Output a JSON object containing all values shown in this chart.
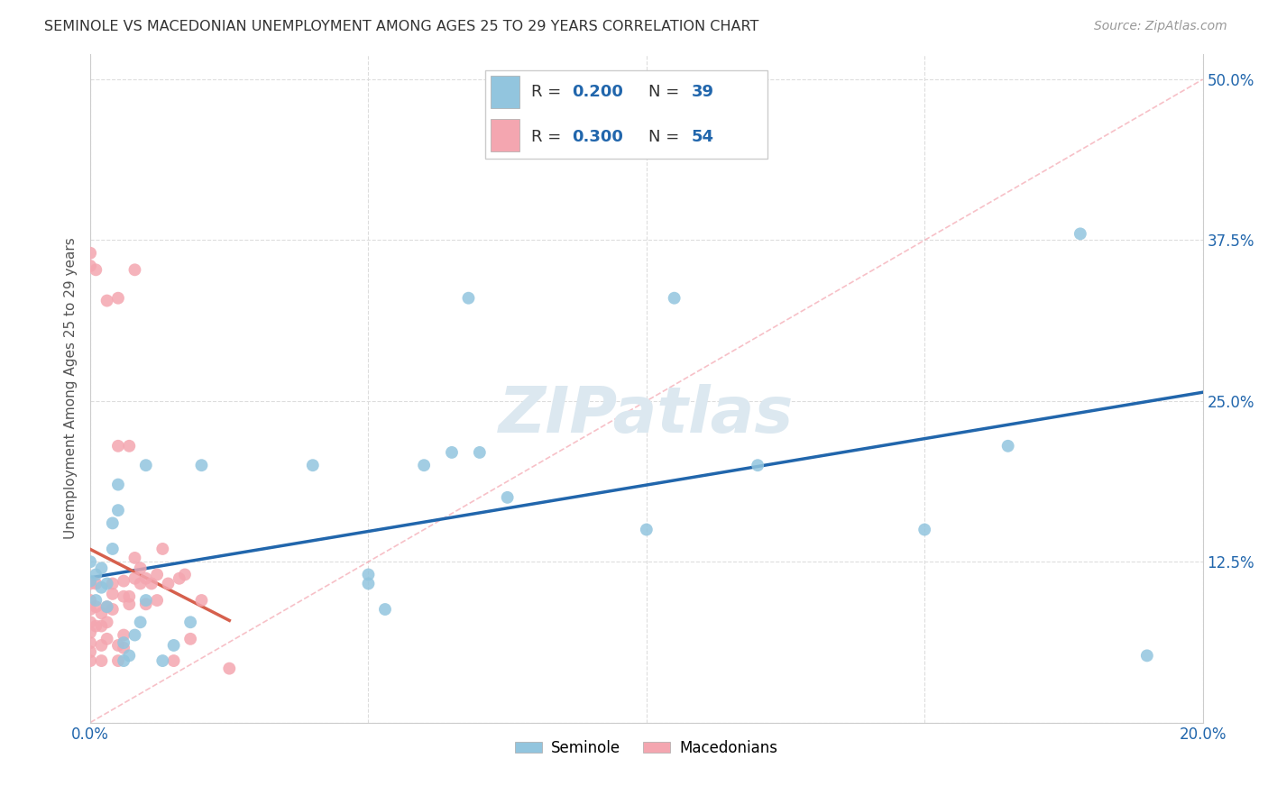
{
  "title": "SEMINOLE VS MACEDONIAN UNEMPLOYMENT AMONG AGES 25 TO 29 YEARS CORRELATION CHART",
  "source": "Source: ZipAtlas.com",
  "ylabel": "Unemployment Among Ages 25 to 29 years",
  "xlim": [
    0.0,
    0.2
  ],
  "ylim": [
    0.0,
    0.52
  ],
  "xticks": [
    0.0,
    0.05,
    0.1,
    0.15,
    0.2
  ],
  "xticklabels": [
    "0.0%",
    "",
    "",
    "",
    "20.0%"
  ],
  "yticks": [
    0.0,
    0.125,
    0.25,
    0.375,
    0.5
  ],
  "yticklabels": [
    "",
    "12.5%",
    "25.0%",
    "37.5%",
    "50.0%"
  ],
  "seminole_R": 0.2,
  "seminole_N": 39,
  "macedonian_R": 0.3,
  "macedonian_N": 54,
  "seminole_color": "#92c5de",
  "macedonian_color": "#f4a6b0",
  "seminole_line_color": "#2166ac",
  "macedonian_line_color": "#d6604d",
  "diagonal_color": "#cccccc",
  "background_color": "#ffffff",
  "grid_color": "#dddddd",
  "sem_x": [
    0.0,
    0.0,
    0.001,
    0.001,
    0.002,
    0.002,
    0.003,
    0.003,
    0.004,
    0.004,
    0.005,
    0.005,
    0.006,
    0.006,
    0.007,
    0.008,
    0.009,
    0.01,
    0.01,
    0.013,
    0.015,
    0.018,
    0.02,
    0.04,
    0.05,
    0.053,
    0.06,
    0.068,
    0.1,
    0.105,
    0.12,
    0.15,
    0.165,
    0.178,
    0.19,
    0.05,
    0.065,
    0.07,
    0.075
  ],
  "sem_y": [
    0.11,
    0.125,
    0.095,
    0.115,
    0.105,
    0.12,
    0.09,
    0.108,
    0.135,
    0.155,
    0.165,
    0.185,
    0.048,
    0.062,
    0.052,
    0.068,
    0.078,
    0.095,
    0.2,
    0.048,
    0.06,
    0.078,
    0.2,
    0.2,
    0.108,
    0.088,
    0.2,
    0.33,
    0.15,
    0.33,
    0.2,
    0.15,
    0.215,
    0.38,
    0.052,
    0.115,
    0.21,
    0.21,
    0.175
  ],
  "mac_x": [
    0.0,
    0.0,
    0.0,
    0.0,
    0.0,
    0.0,
    0.0,
    0.0,
    0.0,
    0.0,
    0.001,
    0.001,
    0.001,
    0.001,
    0.002,
    0.002,
    0.002,
    0.002,
    0.003,
    0.003,
    0.003,
    0.003,
    0.004,
    0.004,
    0.004,
    0.005,
    0.005,
    0.005,
    0.005,
    0.006,
    0.006,
    0.006,
    0.006,
    0.007,
    0.007,
    0.007,
    0.008,
    0.008,
    0.008,
    0.009,
    0.009,
    0.01,
    0.01,
    0.011,
    0.012,
    0.012,
    0.013,
    0.014,
    0.015,
    0.016,
    0.017,
    0.018,
    0.02,
    0.025
  ],
  "mac_y": [
    0.048,
    0.055,
    0.062,
    0.07,
    0.078,
    0.088,
    0.095,
    0.355,
    0.365,
    0.108,
    0.075,
    0.09,
    0.108,
    0.352,
    0.048,
    0.06,
    0.075,
    0.085,
    0.065,
    0.078,
    0.09,
    0.328,
    0.088,
    0.1,
    0.108,
    0.048,
    0.06,
    0.215,
    0.33,
    0.058,
    0.068,
    0.098,
    0.11,
    0.092,
    0.215,
    0.098,
    0.112,
    0.128,
    0.352,
    0.108,
    0.12,
    0.092,
    0.112,
    0.108,
    0.095,
    0.115,
    0.135,
    0.108,
    0.048,
    0.112,
    0.115,
    0.065,
    0.095,
    0.042
  ]
}
